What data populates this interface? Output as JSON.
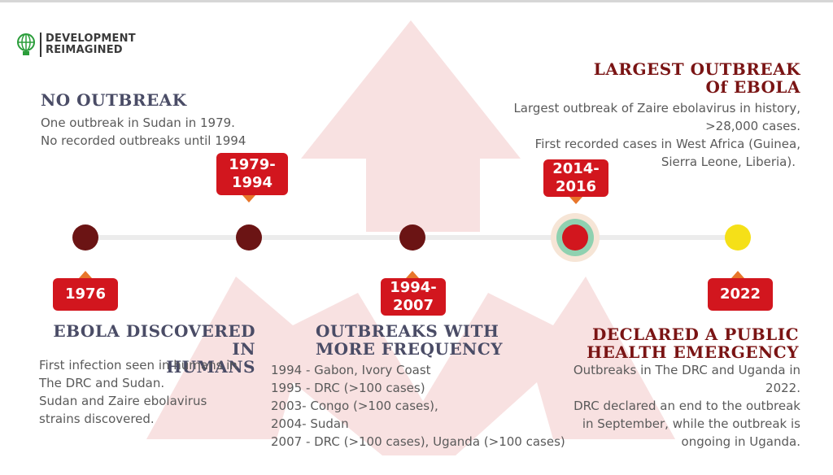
{
  "logo": {
    "line1": "DEVELOPMENT",
    "line2": "REIMAGINED",
    "icon": "globe-lightbulb-icon",
    "color": "#2a9d3a"
  },
  "colors": {
    "badge": "#d2161e",
    "pointer": "#e8762b",
    "dot_dark": "#6b1414",
    "dot_yellow": "#f5e018",
    "heading_dark": "#4a4c66",
    "heading_red": "#7a1414",
    "arrow_bg": "#f7dede"
  },
  "events": [
    {
      "badge": "1976",
      "title_lines": [
        "EBOLA DISCOVERED IN",
        "HUMANS"
      ],
      "text_lines": [
        "First infection seen in humans in",
        "The DRC and Sudan.",
        "Sudan and Zaire ebolavirus",
        "strains discovered."
      ]
    },
    {
      "badge_lines": [
        "1979-",
        "1994"
      ],
      "title_lines": [
        "NO OUTBREAK"
      ],
      "text_lines": [
        "One outbreak in Sudan in 1979.",
        "No recorded outbreaks until 1994"
      ]
    },
    {
      "badge_lines": [
        "1994-",
        "2007"
      ],
      "title_lines": [
        "OUTBREAKS WITH",
        "MORE FREQUENCY"
      ],
      "text_lines": [
        "1994 - Gabon, Ivory Coast",
        "1995 - DRC (>100 cases)",
        "2003- Congo (>100 cases),",
        "2004- Sudan",
        "2007 - DRC (>100 cases), Uganda (>100 cases)"
      ]
    },
    {
      "badge_lines": [
        "2014-",
        "2016"
      ],
      "title_lines": [
        "LARGEST OUTBREAK",
        "Of EBOLA"
      ],
      "text_lines": [
        "Largest outbreak of Zaire ebolavirus in history,",
        ">28,000 cases.",
        "First recorded cases in West Africa (Guinea,",
        "Sierra Leone, Liberia)."
      ]
    },
    {
      "badge": "2022",
      "title_lines": [
        "DECLARED A PUBLIC",
        "HEALTH EMERGENCY"
      ],
      "text_lines": [
        "Outbreaks in The DRC and Uganda in",
        "2022.",
        "DRC declared an end to the outbreak",
        "in September, while the outbreak is",
        "ongoing in Uganda."
      ]
    }
  ]
}
